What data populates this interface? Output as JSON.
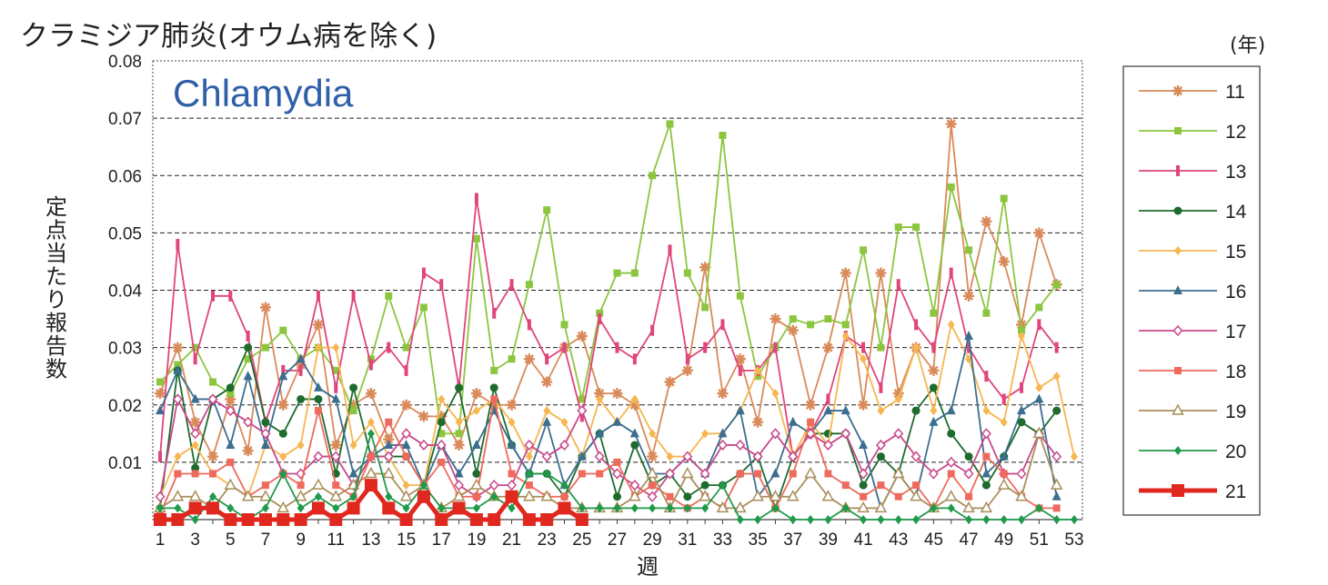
{
  "chart_data": {
    "type": "line",
    "title": "クラミジア肺炎(オウム病を除く)",
    "subtitle": "Chlamydia",
    "xlabel": "週",
    "ylabel": "定点当たり報告数",
    "legend_title": "(年)",
    "legend_position": "right",
    "grid": true,
    "xlim": [
      1,
      53
    ],
    "ylim": [
      0,
      0.08
    ],
    "y_ticks": [
      "0.01",
      "0.02",
      "0.03",
      "0.04",
      "0.05",
      "0.06",
      "0.07",
      "0.08"
    ],
    "x_ticks": [
      "1",
      "3",
      "5",
      "7",
      "9",
      "11",
      "13",
      "15",
      "17",
      "19",
      "21",
      "23",
      "25",
      "27",
      "29",
      "31",
      "33",
      "35",
      "37",
      "39",
      "41",
      "43",
      "45",
      "47",
      "49",
      "51",
      "53"
    ],
    "series": [
      {
        "name": "11",
        "color": "#d98a5a",
        "marker": "asterisk",
        "values": [
          0.022,
          0.03,
          0.017,
          0.011,
          0.021,
          0.012,
          0.037,
          0.02,
          0.027,
          0.034,
          0.013,
          0.02,
          0.022,
          0.014,
          0.02,
          0.018,
          0.018,
          0.013,
          0.022,
          0.02,
          0.02,
          0.028,
          0.024,
          0.03,
          0.032,
          0.022,
          0.022,
          0.02,
          0.011,
          0.024,
          0.026,
          0.044,
          0.022,
          0.028,
          0.017,
          0.035,
          0.033,
          0.02,
          0.03,
          0.043,
          0.02,
          0.043,
          0.022,
          0.03,
          0.026,
          0.069,
          0.039,
          0.052,
          0.045,
          0.034,
          0.05,
          0.041,
          null
        ]
      },
      {
        "name": "12",
        "color": "#8cc63f",
        "marker": "square",
        "values": [
          0.024,
          0.027,
          0.03,
          0.024,
          0.022,
          0.028,
          0.03,
          0.033,
          0.028,
          0.03,
          0.026,
          0.019,
          0.028,
          0.039,
          0.03,
          0.037,
          0.015,
          0.015,
          0.049,
          0.026,
          0.028,
          0.041,
          0.054,
          0.034,
          0.021,
          0.036,
          0.043,
          0.043,
          0.06,
          0.069,
          0.043,
          0.037,
          0.067,
          0.039,
          0.025,
          0.03,
          0.035,
          0.034,
          0.035,
          0.034,
          0.047,
          0.03,
          0.051,
          0.051,
          0.036,
          0.058,
          0.047,
          0.036,
          0.056,
          0.033,
          0.037,
          0.041,
          null
        ]
      },
      {
        "name": "13",
        "color": "#e0457b",
        "marker": "bar",
        "values": [
          0.011,
          0.048,
          0.028,
          0.039,
          0.039,
          0.032,
          0.017,
          0.026,
          0.026,
          0.039,
          0.023,
          0.039,
          0.027,
          0.03,
          0.026,
          0.043,
          0.041,
          0.023,
          0.056,
          0.036,
          0.041,
          0.034,
          0.028,
          0.03,
          0.018,
          0.035,
          0.03,
          0.028,
          0.033,
          0.047,
          0.028,
          0.03,
          0.034,
          0.026,
          0.026,
          0.03,
          0.011,
          0.015,
          0.021,
          0.032,
          0.03,
          0.023,
          0.041,
          0.034,
          0.03,
          0.043,
          0.03,
          0.025,
          0.021,
          0.023,
          0.034,
          0.03,
          null
        ]
      },
      {
        "name": "14",
        "color": "#1e6b2e",
        "marker": "circle",
        "values": [
          0.002,
          0.026,
          0.009,
          0.021,
          0.023,
          0.03,
          0.017,
          0.015,
          0.021,
          0.021,
          0.008,
          0.023,
          0.011,
          0.011,
          0.011,
          0.006,
          0.017,
          0.023,
          0.008,
          0.023,
          0.013,
          0.008,
          0.008,
          0.004,
          0.011,
          0.015,
          0.004,
          0.013,
          0.006,
          0.008,
          0.004,
          0.006,
          0.006,
          0.008,
          0.011,
          0.002,
          0.011,
          0.015,
          0.015,
          0.015,
          0.006,
          0.011,
          0.008,
          0.019,
          0.023,
          0.015,
          0.011,
          0.006,
          0.011,
          0.017,
          0.015,
          0.019,
          null
        ]
      },
      {
        "name": "15",
        "color": "#f7b650",
        "marker": "diamond",
        "values": [
          0.004,
          0.011,
          0.013,
          0.008,
          0.006,
          0.004,
          0.013,
          0.011,
          0.013,
          0.03,
          0.03,
          0.013,
          0.017,
          0.011,
          0.006,
          0.006,
          0.021,
          0.017,
          0.019,
          0.021,
          0.017,
          0.011,
          0.019,
          0.017,
          0.011,
          0.021,
          0.017,
          0.021,
          0.015,
          0.011,
          0.011,
          0.015,
          0.015,
          0.019,
          0.026,
          0.022,
          0.011,
          0.017,
          0.013,
          0.032,
          0.028,
          0.019,
          0.021,
          0.03,
          0.019,
          0.034,
          0.028,
          0.019,
          0.017,
          0.032,
          0.023,
          0.025,
          0.011
        ]
      },
      {
        "name": "16",
        "color": "#3b6e8f",
        "marker": "triangle",
        "values": [
          0.019,
          0.026,
          0.021,
          0.021,
          0.013,
          0.025,
          0.013,
          0.025,
          0.028,
          0.023,
          0.021,
          0.008,
          0.011,
          0.013,
          0.013,
          0.006,
          0.013,
          0.008,
          0.013,
          0.019,
          0.013,
          0.008,
          0.017,
          0.006,
          0.011,
          0.015,
          0.017,
          0.015,
          0.008,
          0.008,
          0.011,
          0.008,
          0.015,
          0.019,
          0.004,
          0.008,
          0.017,
          0.015,
          0.019,
          0.019,
          0.013,
          0.002,
          0.008,
          0.004,
          0.017,
          0.019,
          0.032,
          0.008,
          0.011,
          0.019,
          0.021,
          0.004,
          null
        ]
      },
      {
        "name": "17",
        "color": "#c94a8c",
        "marker": "diamond-open",
        "values": [
          0.004,
          0.021,
          0.015,
          0.021,
          0.019,
          0.017,
          0.015,
          0.008,
          0.008,
          0.011,
          0.011,
          0.006,
          0.011,
          0.011,
          0.015,
          0.013,
          0.013,
          0.006,
          0.004,
          0.006,
          0.006,
          0.013,
          0.011,
          0.013,
          0.019,
          0.011,
          0.008,
          0.006,
          0.004,
          0.008,
          0.011,
          0.008,
          0.013,
          0.013,
          0.011,
          0.015,
          0.011,
          0.015,
          0.013,
          0.015,
          0.008,
          0.013,
          0.015,
          0.011,
          0.008,
          0.01,
          0.008,
          0.015,
          0.008,
          0.008,
          0.015,
          0.011,
          null
        ]
      },
      {
        "name": "18",
        "color": "#ee6a5c",
        "marker": "square",
        "values": [
          0.001,
          0.008,
          0.008,
          0.008,
          0.01,
          0.004,
          0.006,
          0.008,
          0.006,
          0.019,
          0.006,
          0.004,
          0.011,
          0.017,
          0.011,
          0.006,
          0.01,
          0.004,
          0.004,
          0.021,
          0.008,
          0.006,
          0.004,
          0.004,
          0.008,
          0.008,
          0.01,
          0.004,
          0.006,
          0.004,
          0.002,
          0.004,
          0.002,
          0.008,
          0.008,
          0.002,
          0.008,
          0.017,
          0.008,
          0.006,
          0.004,
          0.006,
          0.004,
          0.006,
          0.002,
          0.008,
          0.004,
          0.011,
          0.008,
          0.004,
          0.002,
          0.002,
          null
        ]
      },
      {
        "name": "19",
        "color": "#a98e5a",
        "marker": "triangle-open",
        "values": [
          0.002,
          0.004,
          0.004,
          0.002,
          0.006,
          0.004,
          0.004,
          0.002,
          0.004,
          0.006,
          0.004,
          0.006,
          0.008,
          0.008,
          0.004,
          0.006,
          0.002,
          0.004,
          0.006,
          0.004,
          0.004,
          0.004,
          0.004,
          0.002,
          0.002,
          0.002,
          0.002,
          0.004,
          0.008,
          0.002,
          0.008,
          0.004,
          0.002,
          0.002,
          0.004,
          0.004,
          0.004,
          0.008,
          0.004,
          0.002,
          0.002,
          0.002,
          0.008,
          0.004,
          0.002,
          0.004,
          0.002,
          0.002,
          0.006,
          0.004,
          0.015,
          0.006,
          null
        ]
      },
      {
        "name": "20",
        "color": "#1f9a4a",
        "marker": "diamond",
        "values": [
          0.002,
          0.002,
          0.0,
          0.004,
          0.002,
          0.0,
          0.002,
          0.008,
          0.002,
          0.004,
          0.002,
          0.004,
          0.015,
          0.004,
          0.002,
          0.006,
          0.002,
          0.002,
          0.002,
          0.004,
          0.002,
          0.008,
          0.008,
          0.006,
          0.002,
          0.002,
          0.002,
          0.002,
          0.002,
          0.002,
          0.002,
          0.002,
          0.006,
          0.0,
          0.0,
          0.002,
          0.0,
          0.0,
          0.0,
          0.002,
          0.0,
          0.0,
          0.0,
          0.0,
          0.002,
          0.002,
          0.0,
          0.0,
          0.0,
          0.0,
          0.002,
          0.0,
          0.0
        ]
      },
      {
        "name": "21",
        "color": "#e0281f",
        "marker": "square-big",
        "values": [
          0.0,
          0.0,
          0.002,
          0.002,
          0.0,
          0.0,
          0.0,
          0.0,
          0.0,
          0.002,
          0.0,
          0.002,
          0.006,
          0.002,
          0.0,
          0.004,
          0.0,
          0.002,
          0.0,
          0.0,
          0.004,
          0.0,
          0.0,
          0.002,
          0.0,
          null,
          null,
          null,
          null,
          null,
          null,
          null,
          null,
          null,
          null,
          null,
          null,
          null,
          null,
          null,
          null,
          null,
          null,
          null,
          null,
          null,
          null,
          null,
          null,
          null,
          null,
          null,
          null
        ]
      }
    ]
  }
}
